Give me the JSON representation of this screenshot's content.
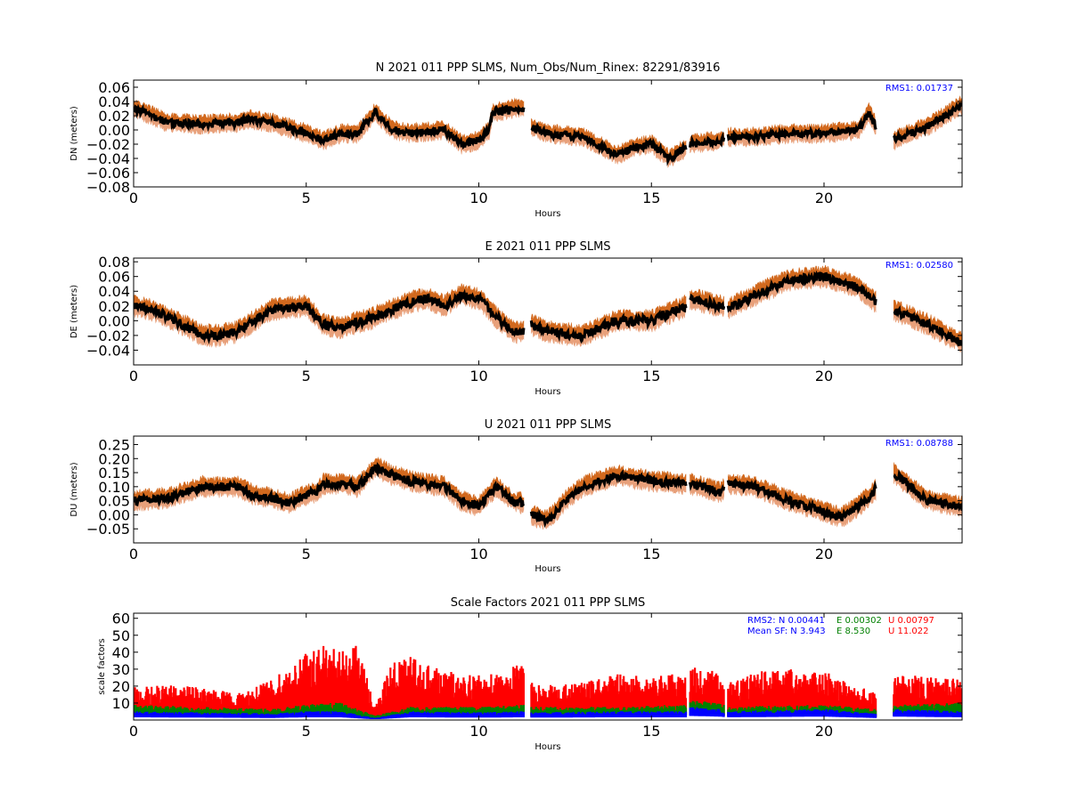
{
  "colors": {
    "upper_band": "#d2691e",
    "lower_band": "#e8a07a",
    "main": "#000000",
    "rms_text": "#0000ff",
    "sf_n": "#0000ff",
    "sf_e": "#008000",
    "sf_u": "#ff0000"
  },
  "chart_data": [
    {
      "type": "scatter",
      "title": "N 2021 011 PPP  SLMS, Num_Obs/Num_Rinex: 82291/83916",
      "xlabel": "Hours",
      "ylabel": "DN (meters)",
      "xlim": [
        0,
        24
      ],
      "ylim": [
        -0.08,
        0.07
      ],
      "xticks": [
        0,
        5,
        10,
        15,
        20
      ],
      "xtick_labels": [
        "0",
        "5",
        "10",
        "15",
        "20"
      ],
      "yticks": [
        -0.08,
        -0.06,
        -0.04,
        -0.02,
        0.0,
        0.02,
        0.04,
        0.06
      ],
      "ytick_labels": [
        "−0.08",
        "−0.06",
        "−0.04",
        "−0.02",
        "0.00",
        "0.02",
        "0.04",
        "0.06"
      ],
      "annotation": "RMS1:  0.01737",
      "band": 0.018,
      "gaps": [
        [
          11.3,
          11.5
        ],
        [
          16.0,
          16.1
        ],
        [
          17.1,
          17.2
        ],
        [
          21.5,
          22.0
        ]
      ],
      "series": [
        {
          "x": [
            0,
            0.3,
            1,
            2,
            3,
            3.3,
            4,
            5,
            5.5,
            6,
            6.5,
            7,
            7.5,
            8,
            9,
            9.5,
            10,
            10.3,
            10.4,
            11,
            11.3,
            11.5,
            12,
            13,
            14,
            14.5,
            15,
            15.5,
            16,
            16.1,
            17,
            17.2,
            18,
            19,
            20,
            21,
            21.3,
            21.5,
            22,
            23,
            24
          ],
          "y": [
            0.03,
            0.025,
            0.01,
            0.008,
            0.01,
            0.015,
            0.01,
            -0.005,
            -0.015,
            -0.005,
            -0.005,
            0.025,
            0.0,
            -0.005,
            0.0,
            -0.02,
            -0.015,
            0.0,
            0.025,
            0.03,
            0.03,
            0.005,
            -0.005,
            -0.01,
            -0.035,
            -0.025,
            -0.02,
            -0.04,
            -0.025,
            -0.02,
            -0.015,
            -0.01,
            -0.01,
            -0.005,
            -0.005,
            0.0,
            0.025,
            0.005,
            -0.015,
            0.005,
            0.035
          ]
        }
      ]
    },
    {
      "type": "scatter",
      "title": "E 2021 011 PPP  SLMS",
      "xlabel": "Hours",
      "ylabel": "DE (meters)",
      "xlim": [
        0,
        24
      ],
      "ylim": [
        -0.06,
        0.085
      ],
      "xticks": [
        0,
        5,
        10,
        15,
        20
      ],
      "xtick_labels": [
        "0",
        "5",
        "10",
        "15",
        "20"
      ],
      "yticks": [
        -0.04,
        -0.02,
        0.0,
        0.02,
        0.04,
        0.06,
        0.08
      ],
      "ytick_labels": [
        "−0.04",
        "−0.02",
        "0.00",
        "0.02",
        "0.04",
        "0.06",
        "0.08"
      ],
      "annotation": "RMS1:  0.02580",
      "band": 0.02,
      "gaps": [
        [
          11.3,
          11.5
        ],
        [
          16.0,
          16.1
        ],
        [
          17.1,
          17.2
        ],
        [
          21.5,
          22.0
        ]
      ],
      "series": [
        {
          "x": [
            0,
            0.5,
            1,
            2,
            2.5,
            3,
            4,
            5,
            5.5,
            6,
            7,
            8,
            8.5,
            9,
            9.5,
            10,
            10.5,
            11,
            11.3,
            11.5,
            12,
            13,
            14,
            15,
            16,
            16.1,
            17,
            17.2,
            18,
            19,
            20,
            21,
            21.5,
            22,
            23,
            24
          ],
          "y": [
            0.02,
            0.015,
            0.005,
            -0.02,
            -0.02,
            -0.015,
            0.015,
            0.02,
            -0.005,
            -0.01,
            0.005,
            0.025,
            0.03,
            0.02,
            0.035,
            0.03,
            0.005,
            -0.015,
            -0.015,
            -0.005,
            -0.015,
            -0.02,
            0.0,
            0.0,
            0.02,
            0.03,
            0.02,
            0.015,
            0.035,
            0.055,
            0.06,
            0.045,
            0.025,
            0.015,
            -0.005,
            -0.03
          ]
        }
      ]
    },
    {
      "type": "scatter",
      "title": "U 2021 011 PPP  SLMS",
      "xlabel": "Hours",
      "ylabel": "DU (meters)",
      "xlim": [
        0,
        24
      ],
      "ylim": [
        -0.1,
        0.28
      ],
      "xticks": [
        0,
        5,
        10,
        15,
        20
      ],
      "xtick_labels": [
        "0",
        "5",
        "10",
        "15",
        "20"
      ],
      "yticks": [
        -0.05,
        0.0,
        0.05,
        0.1,
        0.15,
        0.2,
        0.25
      ],
      "ytick_labels": [
        "−0.05",
        "0.00",
        "0.05",
        "0.10",
        "0.15",
        "0.20",
        "0.25"
      ],
      "annotation": "RMS1:  0.08788",
      "band": 0.05,
      "gaps": [
        [
          11.3,
          11.5
        ],
        [
          16.0,
          16.1
        ],
        [
          17.1,
          17.2
        ],
        [
          21.5,
          22.0
        ]
      ],
      "series": [
        {
          "x": [
            0,
            1,
            2,
            3,
            3.5,
            4,
            4.5,
            5,
            5.3,
            5.5,
            6,
            6.5,
            7,
            7.5,
            8,
            9,
            9.5,
            10,
            10.5,
            11,
            11.3,
            11.5,
            12,
            12.5,
            13,
            14,
            15,
            16,
            16.1,
            17,
            17.2,
            18,
            19,
            20,
            20.5,
            21,
            21.5,
            22,
            22.5,
            23,
            24
          ],
          "y": [
            0.05,
            0.06,
            0.1,
            0.1,
            0.07,
            0.06,
            0.04,
            0.07,
            0.08,
            0.11,
            0.11,
            0.1,
            0.17,
            0.14,
            0.12,
            0.1,
            0.05,
            0.03,
            0.1,
            0.05,
            0.04,
            0.0,
            -0.02,
            0.05,
            0.1,
            0.14,
            0.12,
            0.11,
            0.11,
            0.08,
            0.11,
            0.1,
            0.05,
            0.01,
            -0.01,
            0.03,
            0.09,
            0.15,
            0.1,
            0.05,
            0.03
          ]
        }
      ]
    },
    {
      "type": "scatter",
      "title": "Scale Factors 2021 011 PPP  SLMS",
      "xlabel": "Hours",
      "ylabel": "scale factors",
      "xlim": [
        0,
        24
      ],
      "ylim": [
        0,
        63
      ],
      "xticks": [
        0,
        5,
        10,
        15,
        20
      ],
      "xtick_labels": [
        "0",
        "5",
        "10",
        "15",
        "20"
      ],
      "yticks": [
        10,
        20,
        30,
        40,
        50,
        60
      ],
      "ytick_labels": [
        "10",
        "20",
        "30",
        "40",
        "50",
        "60"
      ],
      "gaps": [
        [
          11.3,
          11.5
        ],
        [
          16.0,
          16.1
        ],
        [
          17.1,
          17.2
        ],
        [
          21.5,
          22.0
        ]
      ],
      "stats": {
        "rms2_label": "RMS2: N  0.00441",
        "rms2_e": "E  0.00302",
        "rms2_u": "U  0.00797",
        "mean_sf_label": "Mean SF: N   3.943",
        "mean_sf_e": "E   8.530",
        "mean_sf_u": "U  11.022"
      },
      "series": [
        {
          "name": "U",
          "color": "#ff0000",
          "x": [
            0,
            1,
            2,
            3,
            3.5,
            4,
            4.5,
            5,
            5.5,
            6,
            6.5,
            7,
            7.5,
            8,
            9,
            10,
            11,
            11.3,
            11.5,
            12,
            13,
            14,
            15,
            16,
            16.1,
            17,
            17.2,
            18,
            19,
            20,
            21,
            21.5,
            22,
            23,
            24
          ],
          "y": [
            12,
            13,
            12,
            10,
            12,
            15,
            20,
            25,
            28,
            25,
            28,
            5,
            22,
            24,
            18,
            17,
            20,
            22,
            14,
            13,
            14,
            17,
            16,
            18,
            20,
            18,
            14,
            18,
            19,
            18,
            13,
            10,
            17,
            16,
            15
          ]
        },
        {
          "name": "E",
          "color": "#008000",
          "x": [
            0,
            2,
            4,
            5,
            6,
            7,
            8,
            10,
            11.3,
            11.5,
            14,
            16,
            16.1,
            17,
            17.2,
            20,
            21.5,
            22,
            24
          ],
          "y": [
            7,
            6,
            5,
            7,
            8,
            2,
            6,
            6,
            7,
            6,
            6,
            7,
            9,
            8,
            6,
            7,
            5,
            7,
            8
          ]
        },
        {
          "name": "N",
          "color": "#0000ff",
          "x": [
            0,
            2,
            4,
            5,
            6,
            7,
            8,
            10,
            11.3,
            11.5,
            14,
            16,
            16.1,
            17,
            17.2,
            20,
            21.5,
            22,
            24
          ],
          "y": [
            4,
            3.5,
            3,
            4,
            4,
            1,
            4,
            3.5,
            4,
            3.5,
            4,
            4,
            6,
            5,
            4,
            5,
            3,
            5,
            4
          ]
        }
      ]
    }
  ]
}
